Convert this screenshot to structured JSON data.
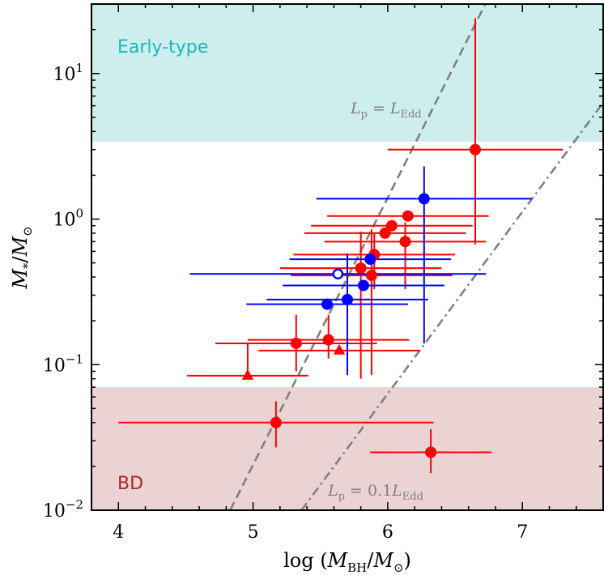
{
  "chart_data": {
    "type": "scatter",
    "xlabel": "log (M_BH/M_⊙)",
    "ylabel": "M_*/M_⊙",
    "xlim": [
      3.8,
      7.6
    ],
    "ylim": [
      0.01,
      30
    ],
    "yscale": "log",
    "xticks": [
      {
        "value": 4,
        "label": "4"
      },
      {
        "value": 5,
        "label": "5"
      },
      {
        "value": 6,
        "label": "6"
      },
      {
        "value": 7,
        "label": "7"
      }
    ],
    "yticks": [
      {
        "value": 0.01,
        "base": "10",
        "exp": "−2"
      },
      {
        "value": 0.1,
        "base": "10",
        "exp": "−1"
      },
      {
        "value": 1,
        "base": "10",
        "exp": "0"
      },
      {
        "value": 10,
        "base": "10",
        "exp": "1"
      }
    ],
    "bands": [
      {
        "name": "early-type-band",
        "label": "Early-type",
        "ymin": 3.4,
        "ymax": 30,
        "fill": "#cdeeed",
        "text_color": "#1ab8c0"
      },
      {
        "name": "bd-band",
        "label": "BD",
        "ymin": 0.01,
        "ymax": 0.07,
        "fill": "#ebd3d4",
        "text_color": "#a52a2a"
      }
    ],
    "lines": [
      {
        "name": "eddington-line",
        "style": "dashed",
        "points": [
          [
            4.83,
            0.01
          ],
          [
            5.92,
            1.0
          ]
        ],
        "label_main": "L",
        "label_sub": "p",
        "label_rest": " = L",
        "label_sub2": "Edd"
      },
      {
        "name": "tenth-eddington-line",
        "style": "dashdot",
        "points": [
          [
            5.36,
            0.01
          ],
          [
            6.96,
            1.0
          ]
        ],
        "label_main": "L",
        "label_sub": "p",
        "label_rest": " = 0.1L",
        "label_sub2": "Edd"
      }
    ],
    "series": [
      {
        "name": "red-circles",
        "color": "#ff0000",
        "marker": "circle",
        "filled": true,
        "points": [
          {
            "x": 6.65,
            "y": 3.0,
            "xerr": [
              0.65,
              0.65
            ],
            "yerr": [
              0.67,
              24
            ]
          },
          {
            "x": 6.15,
            "y": 1.05,
            "xerr": [
              0.6,
              0.6
            ],
            "yerr": null
          },
          {
            "x": 6.03,
            "y": 0.9,
            "xerr": [
              0.6,
              0.6
            ],
            "yerr": null
          },
          {
            "x": 5.98,
            "y": 0.8,
            "xerr": [
              0.6,
              0.6
            ],
            "yerr": null
          },
          {
            "x": 6.13,
            "y": 0.7,
            "xerr": [
              0.6,
              0.6
            ],
            "yerr": [
              0.33,
              0.95
            ]
          },
          {
            "x": 5.9,
            "y": 0.57,
            "xerr": [
              0.6,
              0.6
            ],
            "yerr": [
              0.33,
              0.8
            ]
          },
          {
            "x": 5.8,
            "y": 0.46,
            "xerr": [
              0.6,
              0.6
            ],
            "yerr": [
              0.08,
              0.82
            ]
          },
          {
            "x": 5.88,
            "y": 0.41,
            "xerr": [
              0.6,
              0.6
            ],
            "yerr": [
              0.085,
              0.85
            ]
          },
          {
            "x": 5.32,
            "y": 0.14,
            "xerr": [
              0.6,
              0.6
            ],
            "yerr": [
              0.09,
              0.22
            ]
          },
          {
            "x": 5.56,
            "y": 0.148,
            "xerr": [
              0.6,
              0.6
            ],
            "yerr": [
              0.11,
              0.22
            ]
          },
          {
            "x": 5.17,
            "y": 0.04,
            "xerr": [
              1.17,
              1.17
            ],
            "yerr": [
              0.027,
              0.056
            ]
          },
          {
            "x": 6.32,
            "y": 0.025,
            "xerr": [
              0.45,
              0.45
            ],
            "yerr": [
              0.018,
              0.036
            ]
          }
        ]
      },
      {
        "name": "red-triangles",
        "color": "#ff0000",
        "marker": "triangle",
        "filled": true,
        "points": [
          {
            "x": 4.96,
            "y": 0.084,
            "xerr": [
              0.45,
              0.45
            ],
            "yerr": [
              null,
              0.14
            ]
          },
          {
            "x": 5.64,
            "y": 0.125,
            "xerr": [
              0.6,
              0.6
            ],
            "yerr": null
          }
        ]
      },
      {
        "name": "blue-circles",
        "color": "#0000ff",
        "marker": "circle",
        "filled": true,
        "points": [
          {
            "x": 6.27,
            "y": 1.38,
            "xerr": [
              0.8,
              0.8
            ],
            "yerr": [
              0.14,
              2.3
            ]
          },
          {
            "x": 5.87,
            "y": 0.53,
            "xerr": [
              0.6,
              0.6
            ],
            "yerr": null
          },
          {
            "x": 5.82,
            "y": 0.35,
            "xerr": [
              0.6,
              0.6
            ],
            "yerr": null
          },
          {
            "x": 5.7,
            "y": 0.28,
            "xerr": [
              0.6,
              0.6
            ],
            "yerr": [
              0.085,
              0.58
            ]
          },
          {
            "x": 5.55,
            "y": 0.26,
            "xerr": [
              0.6,
              0.6
            ],
            "yerr": null
          }
        ]
      },
      {
        "name": "blue-open-circles",
        "color": "#0000ff",
        "marker": "circle",
        "filled": false,
        "points": [
          {
            "x": 5.63,
            "y": 0.42,
            "xerr": [
              1.1,
              1.1
            ],
            "yerr": null
          }
        ]
      }
    ]
  }
}
